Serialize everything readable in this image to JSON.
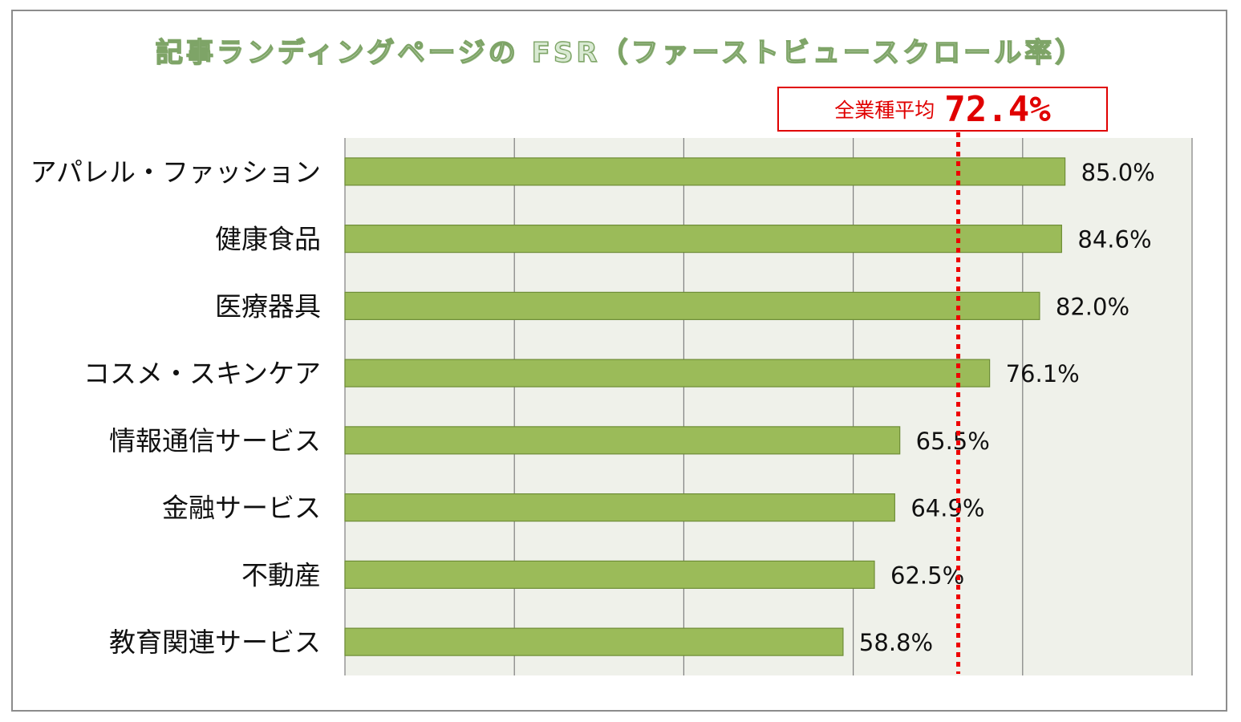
{
  "chart_data": {
    "type": "bar",
    "orientation": "horizontal",
    "title": "記事ランディングページの FSR（ファーストビュースクロール率）",
    "xlabel": "",
    "ylabel": "",
    "xlim": [
      0,
      100
    ],
    "grid": true,
    "legend": "none",
    "categories": [
      "アパレル・ファッション",
      "健康食品",
      "医療器具",
      "コスメ・スキンケア",
      "情報通信サービス",
      "金融サービス",
      "不動産",
      "教育関連サービス"
    ],
    "values": [
      85.0,
      84.6,
      82.0,
      76.1,
      65.5,
      64.9,
      62.5,
      58.8
    ],
    "value_labels": [
      "85.0%",
      "84.6%",
      "82.0%",
      "76.1%",
      "65.5%",
      "64.9%",
      "62.5%",
      "58.8%"
    ],
    "reference_line": {
      "value": 72.4,
      "label": "全業種平均",
      "value_label": "72.4%"
    },
    "colors": {
      "bar": "#9bbb59",
      "bar_border": "#6e8d36",
      "plot_bg": "#eff1ea",
      "grid": "#7f7f7f",
      "reference": "#ee0000"
    }
  }
}
